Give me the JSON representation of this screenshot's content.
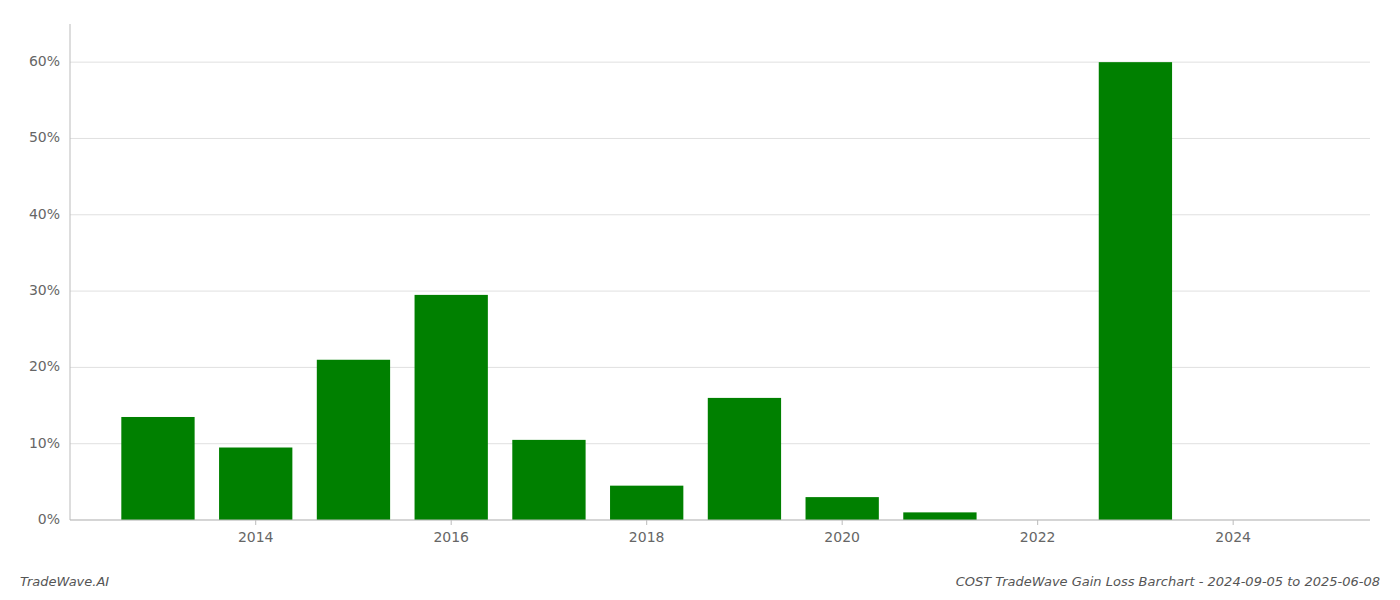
{
  "chart_data": {
    "type": "bar",
    "x": [
      2013,
      2014,
      2015,
      2016,
      2017,
      2018,
      2019,
      2020,
      2021,
      2023
    ],
    "values": [
      13.5,
      9.5,
      21.0,
      29.5,
      10.5,
      4.5,
      16.0,
      3.0,
      1.0,
      60.0
    ],
    "color": "#008000",
    "xlim": [
      2012.1,
      2025.4
    ],
    "xticks": [
      2014,
      2016,
      2018,
      2020,
      2022,
      2024
    ],
    "ylim": [
      0,
      65
    ],
    "yticks": [
      {
        "value": 0,
        "label": "0%"
      },
      {
        "value": 10,
        "label": "10%"
      },
      {
        "value": 20,
        "label": "20%"
      },
      {
        "value": 30,
        "label": "30%"
      },
      {
        "value": 40,
        "label": "40%"
      },
      {
        "value": 50,
        "label": "50%"
      },
      {
        "value": 60,
        "label": "60%"
      }
    ],
    "grid": true,
    "annotations": [
      "TradeWave.AI",
      "COST TradeWave Gain Loss Barchart - 2024-09-05 to 2025-06-08"
    ]
  }
}
